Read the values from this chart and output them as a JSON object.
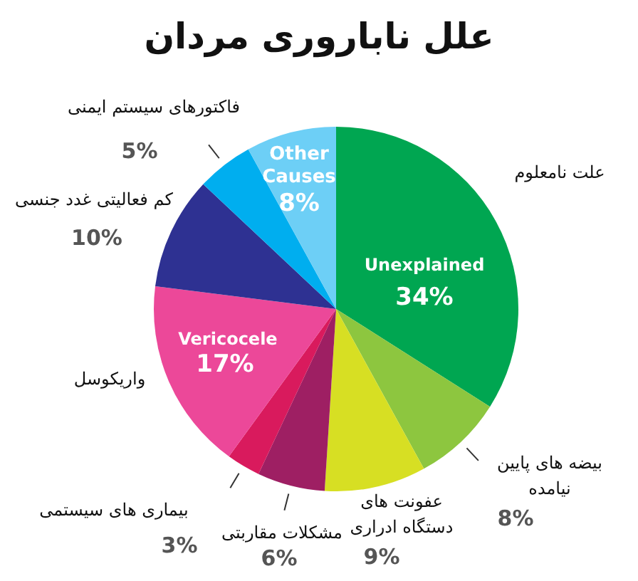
{
  "chart_data": {
    "type": "pie",
    "title": "علل ناباروری مردان",
    "categories": [
      "علت نامعلوم",
      "بیضه های پایین نیامده",
      "عفونت های دستگاه ادراری",
      "مشکلات مقاربتی",
      "بیماری های سیستمی",
      "واریکوسل",
      "کم فعالیتی غدد جنسی",
      "فاکتورهای سیستم ایمنی",
      "Other Causes"
    ],
    "values": [
      34,
      8,
      9,
      6,
      3,
      17,
      10,
      5,
      8
    ],
    "value_labels": [
      "34%",
      "8%",
      "9%",
      "6%",
      "3%",
      "17%",
      "10%",
      "5%",
      "8%"
    ],
    "colors": [
      "#00a651",
      "#8dc63f",
      "#d7df23",
      "#9e1f63",
      "#d91a5d",
      "#ec4899",
      "#2e3192",
      "#00aeef",
      "#6dcff6"
    ],
    "annotations": [
      {
        "text": "Unexplained",
        "x": "علت نامعلوم"
      },
      {
        "text": "Vericocele",
        "x": "واریکوسل"
      }
    ]
  }
}
